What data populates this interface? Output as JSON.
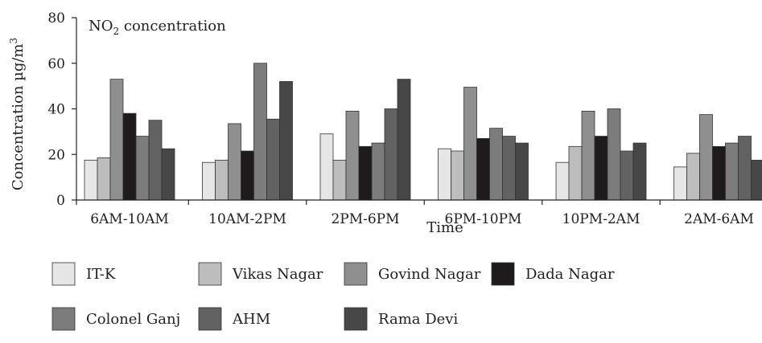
{
  "chart_data": {
    "type": "bar",
    "title_main": "NO",
    "title_sub": "2",
    "title_rest": " concentration",
    "xlabel": "Time",
    "ylabel": "Concentration µg/m",
    "ylabel_sup": "3",
    "ylim": [
      0,
      80
    ],
    "yticks": [
      "0",
      "20",
      "40",
      "60",
      "80"
    ],
    "grid": false,
    "legend_position": "bottom",
    "categories": [
      "6AM-10AM",
      "10AM-2PM",
      "2PM-6PM",
      "6PM-10PM",
      "10PM-2AM",
      "2AM-6AM"
    ],
    "series": [
      {
        "name": "IT-K",
        "color": "#e6e6e6",
        "values": [
          17.5,
          16.5,
          29,
          22.5,
          16.5,
          14.5
        ]
      },
      {
        "name": "Vikas Nagar",
        "color": "#bdbdbd",
        "values": [
          18.5,
          17.5,
          17.5,
          21.5,
          23.5,
          20.5
        ]
      },
      {
        "name": "Govind Nagar",
        "color": "#8f8f8f",
        "values": [
          53,
          33.5,
          39,
          49.5,
          39,
          37.5
        ]
      },
      {
        "name": "Dada Nagar",
        "color": "#1f1b1c",
        "values": [
          38,
          21.5,
          23.5,
          27,
          28,
          23.5
        ]
      },
      {
        "name": "Colonel Ganj",
        "color": "#7c7c7c",
        "values": [
          28,
          60,
          25,
          31.5,
          40,
          25
        ]
      },
      {
        "name": "AHM",
        "color": "#626262",
        "values": [
          35,
          35.5,
          40,
          28,
          21.5,
          28
        ]
      },
      {
        "name": "Rama Devi",
        "color": "#474747",
        "values": [
          22.5,
          52,
          53,
          25,
          25,
          17.5
        ]
      }
    ]
  }
}
